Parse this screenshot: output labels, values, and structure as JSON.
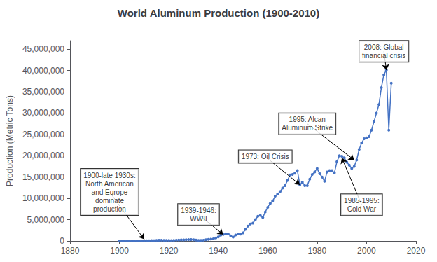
{
  "chart_data": {
    "type": "line",
    "title": "World Aluminum Production (1900-2010)",
    "ylabel": "Production (Metric Tons)",
    "x": [
      1900,
      1901,
      1902,
      1903,
      1904,
      1905,
      1906,
      1907,
      1908,
      1909,
      1910,
      1911,
      1912,
      1913,
      1914,
      1915,
      1916,
      1917,
      1918,
      1919,
      1920,
      1921,
      1922,
      1923,
      1924,
      1925,
      1926,
      1927,
      1928,
      1929,
      1930,
      1931,
      1932,
      1933,
      1934,
      1935,
      1936,
      1937,
      1938,
      1939,
      1940,
      1941,
      1942,
      1943,
      1944,
      1945,
      1946,
      1947,
      1948,
      1949,
      1950,
      1951,
      1952,
      1953,
      1954,
      1955,
      1956,
      1957,
      1958,
      1959,
      1960,
      1961,
      1962,
      1963,
      1964,
      1965,
      1966,
      1967,
      1968,
      1969,
      1970,
      1971,
      1972,
      1973,
      1974,
      1975,
      1976,
      1977,
      1978,
      1979,
      1980,
      1981,
      1982,
      1983,
      1984,
      1985,
      1986,
      1987,
      1988,
      1989,
      1990,
      1991,
      1992,
      1993,
      1994,
      1995,
      1996,
      1997,
      1998,
      1999,
      2000,
      2001,
      2002,
      2003,
      2004,
      2005,
      2006,
      2007,
      2008,
      2009,
      2010
    ],
    "values": [
      7700,
      8000,
      8500,
      9000,
      9500,
      10500,
      12000,
      14000,
      14500,
      15000,
      45000,
      47000,
      50000,
      65000,
      60000,
      130000,
      155000,
      165000,
      130000,
      120000,
      128000,
      80000,
      130000,
      185000,
      195000,
      240000,
      260000,
      280000,
      310000,
      330000,
      270000,
      190000,
      130000,
      140000,
      160000,
      290000,
      380000,
      430000,
      510000,
      700000,
      960000,
      1350000,
      1500000,
      1700000,
      1650000,
      1200000,
      900000,
      1400000,
      1650000,
      1600000,
      1900000,
      2700000,
      3500000,
      4000000,
      4200000,
      5000000,
      5800000,
      6000000,
      5500000,
      6800000,
      7900000,
      8800000,
      9400000,
      10500000,
      11000000,
      11600000,
      12400000,
      13000000,
      14200000,
      15500000,
      15600000,
      15900000,
      16500000,
      13200000,
      13800000,
      13000000,
      13000000,
      14500000,
      15600000,
      16200000,
      17000000,
      15800000,
      15000000,
      14000000,
      16200000,
      16500000,
      16500000,
      16000000,
      18600000,
      20000000,
      19900000,
      19500000,
      18500000,
      17800000,
      17000000,
      17500000,
      19000000,
      21500000,
      23000000,
      24000000,
      24200000,
      24500000,
      26000000,
      28000000,
      30000000,
      32000000,
      36000000,
      39000000,
      40100000,
      26000000,
      37000000
    ],
    "color": "#4472C4",
    "marker": "circle",
    "xlim": [
      1880,
      2020
    ],
    "xticks": [
      1880,
      1900,
      1920,
      1940,
      1960,
      1980,
      2000,
      2020
    ],
    "ylim": [
      0,
      47000000
    ],
    "yticks": [
      0,
      {
        "value": 5000000,
        "label": "5,000,000"
      },
      {
        "value": 10000000,
        "label": "10,000,000"
      },
      {
        "value": 15000000,
        "label": "15,000,000"
      },
      {
        "value": 20000000,
        "label": "20,000,000"
      },
      {
        "value": 25000000,
        "label": "25,000,000"
      },
      {
        "value": 30000000,
        "label": "30,000,000"
      },
      {
        "value": 35000000,
        "label": "35,000,000"
      },
      {
        "value": 40000000,
        "label": "40,000,000"
      },
      {
        "value": 45000000,
        "label": "45,000,000"
      }
    ],
    "grid": false,
    "annotations": [
      {
        "text": "1900-late 1930s:\nNorth American\nand Europe\ndominate\nproduction",
        "xy": [
          1910,
          400000
        ],
        "xytext": [
          1896,
          11500000
        ]
      },
      {
        "text": "1939-1946:\nWWII",
        "xy": [
          1942,
          1500000
        ],
        "xytext": [
          1932,
          6200000
        ]
      },
      {
        "text": "1973: Oil Crisis",
        "xy": [
          1973,
          13200000
        ],
        "xytext": [
          1959,
          19800000
        ]
      },
      {
        "text": "1995: Alcan\nAluminum Strike",
        "xy": [
          1995,
          19000000
        ],
        "xytext": [
          1976,
          27500000
        ]
      },
      {
        "text": "2008: Global\nfinancial crisis",
        "xy": [
          2008,
          40100000
        ],
        "xytext": [
          2007,
          44500000
        ]
      },
      {
        "text": "1985-1995:\nCold War",
        "xy": [
          1990,
          19500000
        ],
        "xytext": [
          1998,
          8500000
        ]
      }
    ]
  }
}
